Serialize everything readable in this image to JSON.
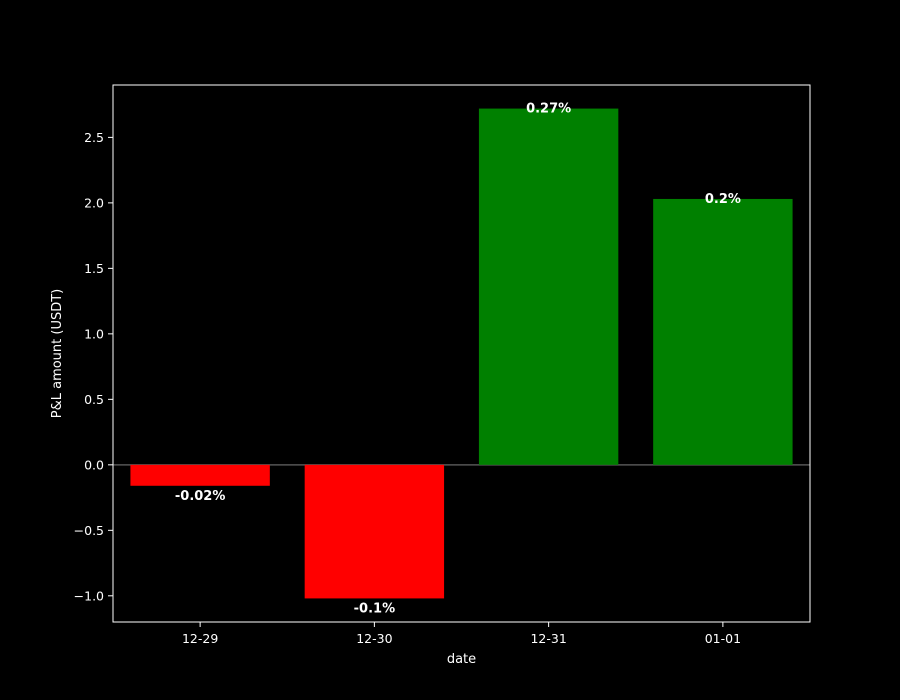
{
  "chart_data": {
    "type": "bar",
    "title": "",
    "xlabel": "date",
    "ylabel": "P&L amount (USDT)",
    "categories": [
      "12-29",
      "12-30",
      "12-31",
      "01-01"
    ],
    "values": [
      -0.16,
      -1.02,
      2.72,
      2.03
    ],
    "bar_labels": [
      "-0.02%",
      "-0.1%",
      "0.27%",
      "0.2%"
    ],
    "ylim": [
      -1.2,
      2.9
    ],
    "yticks": [
      -1.0,
      -0.5,
      0.0,
      0.5,
      1.0,
      1.5,
      2.0,
      2.5
    ],
    "ytick_labels": [
      "−1.0",
      "−0.5",
      "0.0",
      "0.5",
      "1.0",
      "1.5",
      "2.0",
      "2.5"
    ],
    "grid": false,
    "zero_line": true,
    "colors": {
      "background": "#000000",
      "positive": "#008000",
      "negative": "#ff0000",
      "axis": "#ffffff",
      "zero_line": "#555555"
    }
  }
}
